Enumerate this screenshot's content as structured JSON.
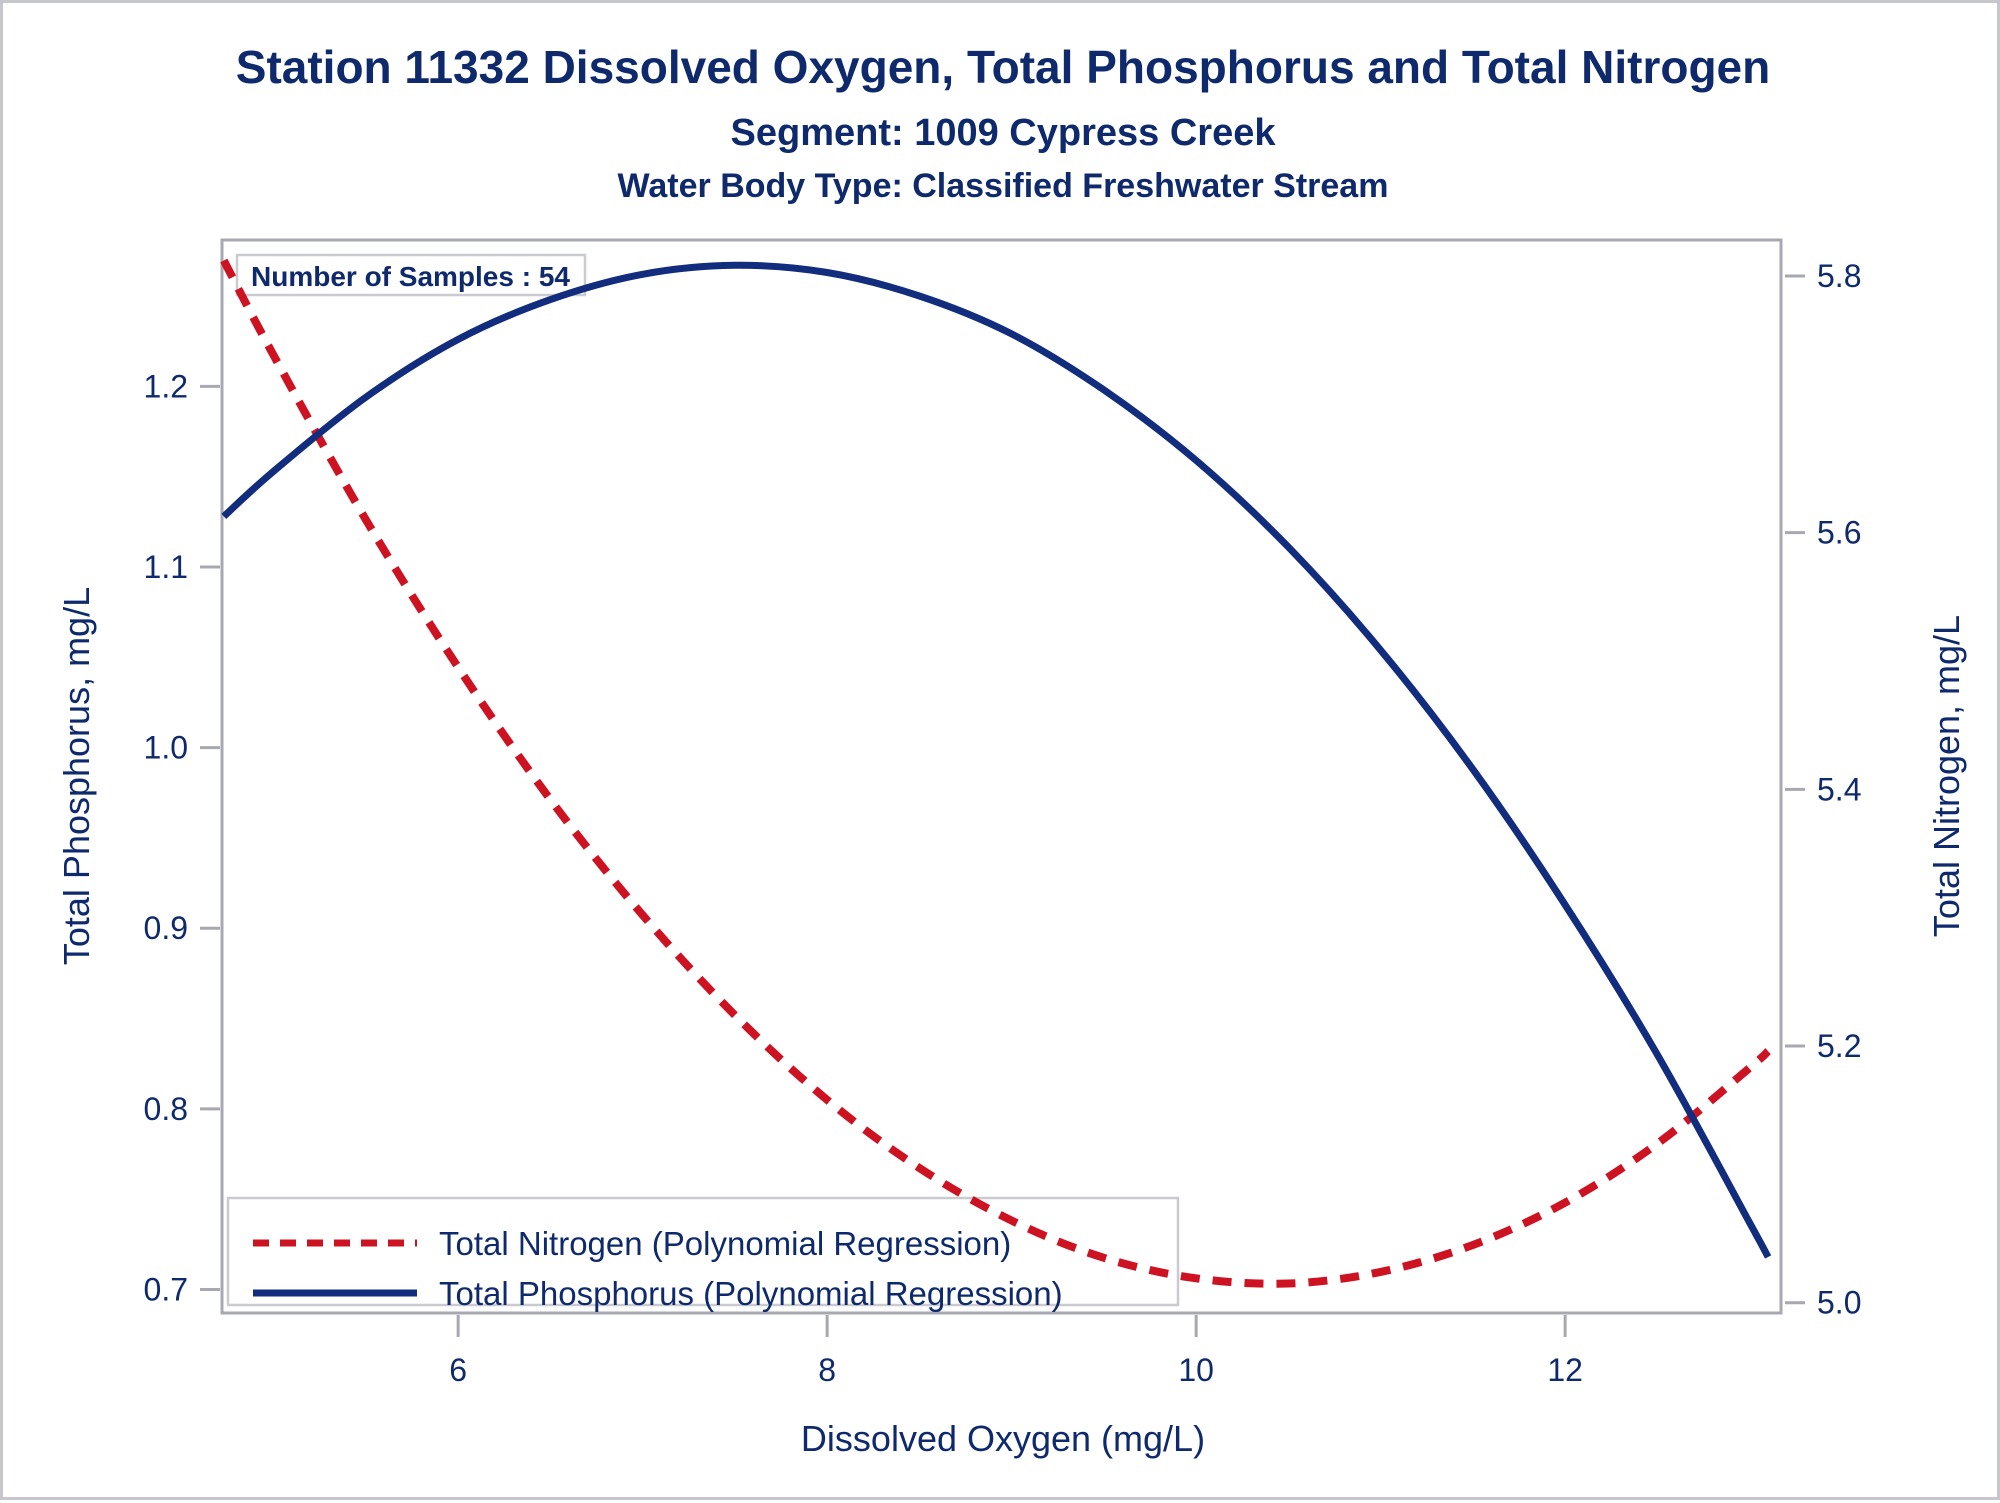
{
  "titles": {
    "line1": "Station 11332  Dissolved Oxygen, Total Phosphorus and Total Nitrogen",
    "line2": "Segment: 1009  Cypress Creek",
    "line3": "Water Body Type: Classified Freshwater Stream"
  },
  "colors": {
    "navy_text": "#0e2a6d",
    "phosphorus_line": "#122d7e",
    "nitrogen_line": "#cd1322",
    "frame_gray": "#a7a8b0",
    "box_border": "#c9cbd0",
    "background": "#ffffff"
  },
  "chart_data": {
    "type": "line",
    "title": "Station 11332  Dissolved Oxygen, Total Phosphorus and Total Nitrogen",
    "subtitle": "Segment: 1009  Cypress Creek",
    "subtitle2": "Water Body Type: Classified Freshwater Stream",
    "xlabel": "Dissolved Oxygen (mg/L)",
    "ylabel_left": "Total Phosphorus, mg/L",
    "ylabel_right": "Total Nitrogen, mg/L",
    "annotation": "Number of Samples : 54",
    "grid": false,
    "legend_position": "bottom-left-inside",
    "xlim": [
      4.72,
      13.17
    ],
    "xticks": [
      "6",
      "8",
      "10",
      "12"
    ],
    "ylim_left": [
      0.687,
      1.281
    ],
    "yticks_left": [
      "0.7",
      "0.8",
      "0.9",
      "1.0",
      "1.1",
      "1.2"
    ],
    "ylim_right": [
      4.992,
      5.828
    ],
    "yticks_right": [
      "5.0",
      "5.2",
      "5.4",
      "5.6",
      "5.8"
    ],
    "x": [
      4.73,
      5.0,
      5.5,
      6.0,
      6.5,
      7.0,
      7.5,
      8.0,
      8.5,
      9.0,
      9.5,
      10.0,
      10.5,
      11.0,
      11.5,
      12.0,
      12.5,
      13.0,
      13.1
    ],
    "series": [
      {
        "name": "Total Nitrogen (Polynomial Regression)",
        "axis": "right",
        "style": "dashed",
        "color": "#cd1322",
        "values": [
          5.812,
          5.738,
          5.61,
          5.495,
          5.392,
          5.302,
          5.224,
          5.158,
          5.105,
          5.064,
          5.035,
          5.019,
          5.015,
          5.024,
          5.045,
          5.078,
          5.124,
          5.183,
          5.196
        ]
      },
      {
        "name": "Total Phosphorus (Polynomial Regression)",
        "axis": "left",
        "style": "solid",
        "color": "#122d7e",
        "values": [
          1.128,
          1.153,
          1.194,
          1.226,
          1.248,
          1.262,
          1.267,
          1.263,
          1.25,
          1.229,
          1.198,
          1.159,
          1.111,
          1.054,
          0.988,
          0.913,
          0.83,
          0.737,
          0.718
        ]
      }
    ]
  }
}
